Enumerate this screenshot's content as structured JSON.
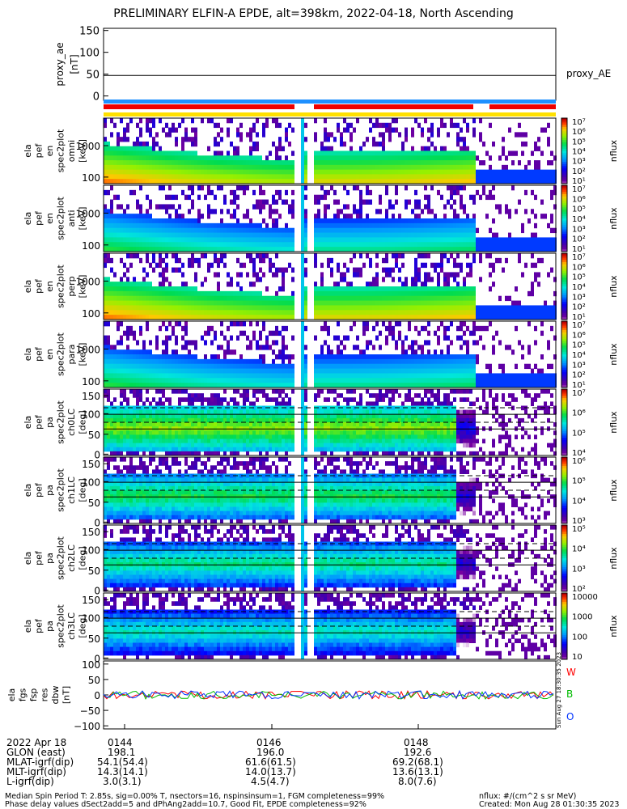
{
  "title": "PRELIMINARY ELFIN-A EPDE, alt=398km, 2022-04-18, North Ascending",
  "colors": {
    "red": "#ee0000",
    "blue": "#1e90ff",
    "yellow": "#ffe000",
    "line_red": "#ff0000",
    "line_green": "#00bb00",
    "line_blue": "#0033ff"
  },
  "chart_data": [
    {
      "type": "line",
      "panel": "proxy_ae",
      "ylabel": "proxy_ae [nT]",
      "yticks": [
        "150",
        "100",
        "50",
        "0"
      ],
      "ylim": [
        -10,
        155
      ],
      "series": [
        {
          "name": "proxy_AE",
          "value": 47
        }
      ],
      "legend": "proxy_AE"
    },
    {
      "type": "heatmap",
      "panel": "energy",
      "ylabel_lines": [
        "ela",
        "pef",
        "en",
        "spec2plot",
        "omni",
        "[keV]"
      ],
      "yticks": [
        "1000",
        "100"
      ],
      "scale": "log",
      "zlabel": "nflux",
      "cbar_ticks": [
        "10⁷",
        "10⁶",
        "10⁵",
        "10⁴",
        "10³",
        "10²",
        "10¹"
      ]
    },
    {
      "type": "heatmap",
      "panel": "energy",
      "ylabel_lines": [
        "ela",
        "pef",
        "en",
        "spec2plot",
        "anti",
        "[keV]"
      ],
      "yticks": [
        "1000",
        "100"
      ],
      "scale": "log",
      "zlabel": "nflux",
      "cbar_ticks": [
        "10⁷",
        "10⁶",
        "10⁵",
        "10⁴",
        "10³",
        "10²",
        "10¹"
      ]
    },
    {
      "type": "heatmap",
      "panel": "energy",
      "ylabel_lines": [
        "ela",
        "pef",
        "en",
        "spec2plot",
        "perp",
        "[keV]"
      ],
      "yticks": [
        "1000",
        "100"
      ],
      "scale": "log",
      "zlabel": "nflux",
      "cbar_ticks": [
        "10⁷",
        "10⁶",
        "10⁵",
        "10⁴",
        "10³",
        "10²",
        "10¹"
      ]
    },
    {
      "type": "heatmap",
      "panel": "energy",
      "ylabel_lines": [
        "ela",
        "pef",
        "en",
        "spec2plot",
        "para",
        "[keV]"
      ],
      "yticks": [
        "1000",
        "100"
      ],
      "scale": "log",
      "zlabel": "nflux",
      "cbar_ticks": [
        "10⁷",
        "10⁶",
        "10⁵",
        "10⁴",
        "10³",
        "10²",
        "10¹"
      ]
    },
    {
      "type": "heatmap",
      "panel": "pitch",
      "ylabel_lines": [
        "ela",
        "pef",
        "pa",
        "spec2plot",
        "ch0LC",
        "[deg]"
      ],
      "yticks": [
        "150",
        "100",
        "50",
        "0"
      ],
      "zlabel": "nflux",
      "cbar_ticks": [
        "10⁷",
        "10⁶",
        "10⁵",
        "10⁴"
      ]
    },
    {
      "type": "heatmap",
      "panel": "pitch",
      "ylabel_lines": [
        "ela",
        "pef",
        "pa",
        "spec2plot",
        "ch1LC",
        "[deg]"
      ],
      "yticks": [
        "150",
        "100",
        "50",
        "0"
      ],
      "zlabel": "nflux",
      "cbar_ticks": [
        "10⁶",
        "10⁵",
        "10⁴",
        "10³"
      ]
    },
    {
      "type": "heatmap",
      "panel": "pitch",
      "ylabel_lines": [
        "ela",
        "pef",
        "pa",
        "spec2plot",
        "ch2LC",
        "[deg]"
      ],
      "yticks": [
        "150",
        "100",
        "50",
        "0"
      ],
      "zlabel": "nflux",
      "cbar_ticks": [
        "10⁵",
        "10⁴",
        "10³",
        "10²"
      ]
    },
    {
      "type": "heatmap",
      "panel": "pitch",
      "ylabel_lines": [
        "ela",
        "pef",
        "pa",
        "spec2plot",
        "ch3LC",
        "[deg]"
      ],
      "yticks": [
        "150",
        "100",
        "50",
        "0"
      ],
      "zlabel": "nflux",
      "cbar_ticks": [
        "10000",
        "1000",
        "100",
        "10"
      ]
    },
    {
      "type": "line",
      "panel": "dbw",
      "ylabel_lines": [
        "ela",
        "fgs",
        "fsp",
        "res",
        "dbw",
        "[nT]"
      ],
      "yticks": [
        "100",
        "50",
        "0",
        "−50",
        "−100"
      ],
      "ylim": [
        -110,
        110
      ],
      "series": [
        {
          "name": "W"
        },
        {
          "name": "B"
        },
        {
          "name": "O"
        }
      ]
    }
  ],
  "xaxis": {
    "times": [
      "0144",
      "0146",
      "0148"
    ]
  },
  "footer": {
    "rows": [
      {
        "label": "2022 Apr 18",
        "values": [
          "0144",
          "0146",
          "0148"
        ]
      },
      {
        "label": "GLON (east)",
        "values": [
          "198.1",
          "196.0",
          "192.6"
        ]
      },
      {
        "label": "MLAT-igrf(dip)",
        "values": [
          "54.1(54.4)",
          "61.6(61.5)",
          "69.2(68.1)"
        ]
      },
      {
        "label": "MLT-igrf(dip)",
        "values": [
          "14.3(14.1)",
          "14.0(13.7)",
          "13.6(13.1)"
        ]
      },
      {
        "label": "L-igrf(dip)",
        "values": [
          "3.0(3.1)",
          "4.5(4.7)",
          "8.0(7.6)"
        ]
      }
    ],
    "note1": "Median Spin Period T: 2.85s, sig=0.00% T, nsectors=16, nspinsinsum=1, FGM completeness=99%",
    "note2": "Phase delay values dSect2add=5 and dPhAng2add=10.7, Good Fit, EPDE completeness=92%",
    "units": "nflux: #/(cm^2 s sr MeV)",
    "created": "Created: Mon Aug 28 01:30:35 2023",
    "stamp": "Sun Aug 27 18:30:35 2023"
  }
}
